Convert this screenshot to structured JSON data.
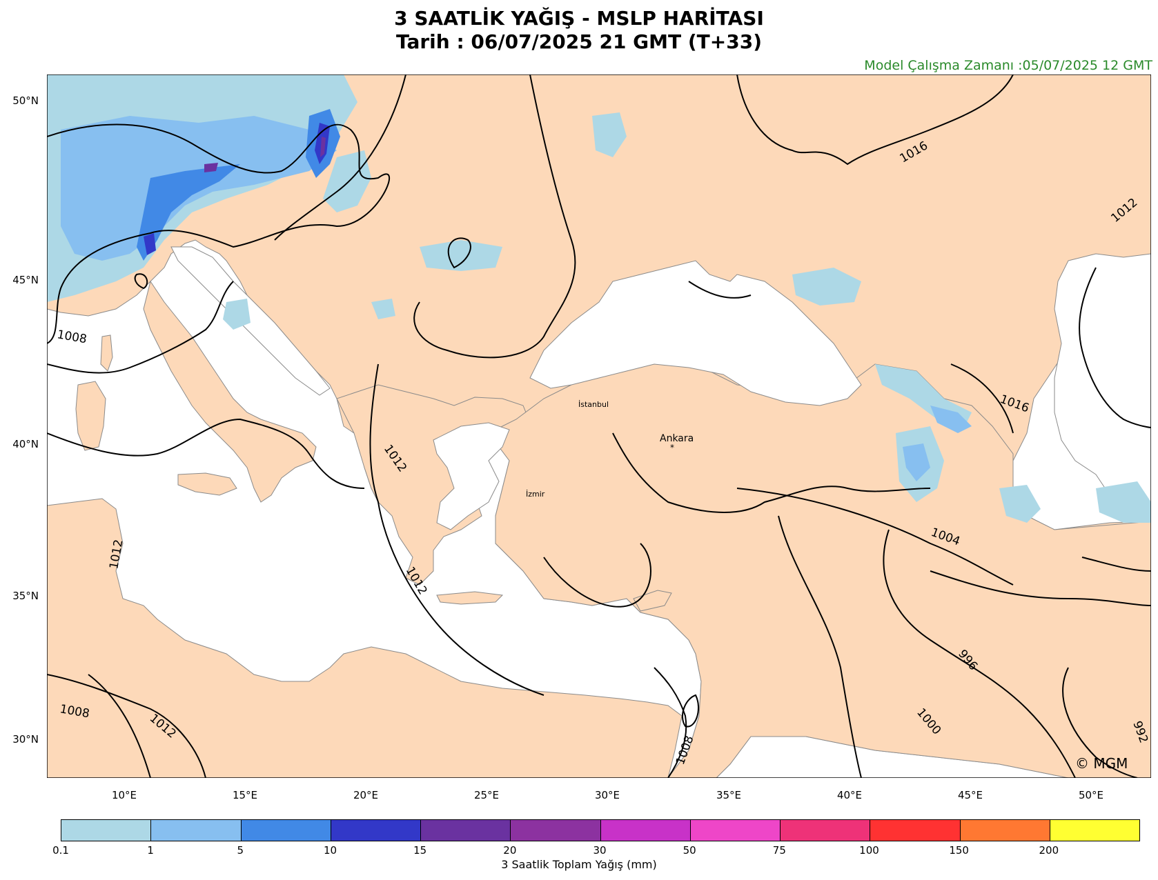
{
  "header": {
    "title_line1": "3 SAATLİK YAĞIŞ - MSLP HARİTASI",
    "title_line2": "Tarih : 06/07/2025  21 GMT (T+33)",
    "model_run": "Model Çalışma Zamanı :05/07/2025  12 GMT"
  },
  "axes": {
    "lat_labels": [
      "50°N",
      "45°N",
      "40°N",
      "35°N",
      "30°N"
    ],
    "lon_labels": [
      "10°E",
      "15°E",
      "20°E",
      "25°E",
      "30°E",
      "35°E",
      "40°E",
      "45°E",
      "50°E"
    ]
  },
  "cities": {
    "istanbul": "İstanbul",
    "ankara": "Ankara",
    "izmir": "İzmir"
  },
  "isobars": [
    "1016",
    "1012",
    "1008",
    "1008",
    "1012",
    "1012",
    "1012",
    "1012",
    "1008",
    "1004",
    "1016",
    "996",
    "1000",
    "992"
  ],
  "colorbar": {
    "title": "3 Saatlik Toplam Yağış (mm)",
    "ticks": [
      "0.1",
      "1",
      "5",
      "10",
      "15",
      "20",
      "30",
      "50",
      "75",
      "100",
      "150",
      "200"
    ],
    "colors": [
      "#add8e6",
      "#87bff0",
      "#4189e6",
      "#3238c8",
      "#6a32a0",
      "#8c32a0",
      "#c832c8",
      "#ee46c8",
      "#ee3278",
      "#ff3232",
      "#ff7832",
      "#ffff32"
    ]
  },
  "colors": {
    "land": "#fdd9b9",
    "sea": "#ffffff",
    "model_text": "#2a8a2a"
  },
  "copyright": "© MGM"
}
